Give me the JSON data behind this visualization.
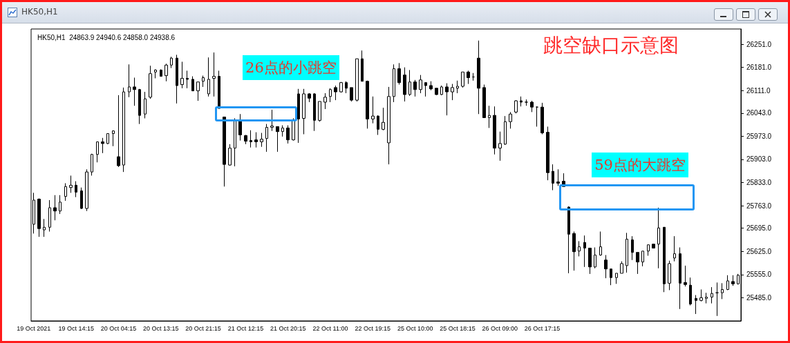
{
  "chart_data": {
    "type": "candlestick",
    "title": "HK50,H1",
    "subtitle": "HK50,H1  24863.9 24940.6 24858.0 24938.6",
    "color": "#000000",
    "annotations": [
      "跳空缺口示意图",
      "26点的小跳空",
      "59点的大跳空"
    ],
    "categories": [
      "19 Oct 2021",
      null,
      null,
      null,
      null,
      null,
      null,
      null,
      "19 Oct 14:15",
      null,
      null,
      null,
      null,
      null,
      null,
      null,
      "20 Oct 04:15",
      null,
      null,
      null,
      null,
      null,
      null,
      null,
      "20 Oct 13:15",
      null,
      null,
      null,
      null,
      null,
      null,
      null,
      "20 Oct 21:15",
      null,
      null,
      null,
      null,
      null,
      null,
      null,
      "21 Oct 12:15",
      null,
      null,
      null,
      null,
      null,
      null,
      null,
      "21 Oct 20:15",
      null,
      null,
      null,
      null,
      null,
      null,
      null,
      "22 Oct 11:00",
      null,
      null,
      null,
      null,
      null,
      null,
      null,
      "22 Oct 19:15",
      null,
      null,
      null,
      null,
      null,
      null,
      null,
      "25 Oct 10:00",
      null,
      null,
      null,
      null,
      null,
      null,
      null,
      "25 Oct 18:15",
      null,
      null,
      null,
      null,
      null,
      null,
      null,
      "26 Oct 09:00",
      null,
      null,
      null,
      null,
      null,
      null,
      null,
      "26 Oct 17:15",
      null,
      null,
      null,
      null,
      null,
      null,
      null,
      null,
      null,
      null,
      null,
      null,
      null,
      null,
      null,
      null,
      null,
      null,
      null,
      null,
      null,
      null,
      null,
      null,
      null,
      null,
      null,
      null,
      null,
      null,
      null,
      null,
      null,
      null,
      null,
      null,
      null
    ],
    "ohlc": [
      [
        25707,
        25802,
        25679,
        25780
      ],
      [
        25783,
        25785,
        25669,
        25694
      ],
      [
        25690,
        25723,
        25669,
        25698
      ],
      [
        25698,
        25780,
        25685,
        25757
      ],
      [
        25757,
        25795,
        25719,
        25747
      ],
      [
        25747,
        25795,
        25738,
        25774
      ],
      [
        25791,
        25831,
        25778,
        25821
      ],
      [
        25818,
        25854,
        25802,
        25825
      ],
      [
        25825,
        25837,
        25789,
        25804
      ],
      [
        25808,
        25818,
        25753,
        25755
      ],
      [
        25755,
        25873,
        25747,
        25865
      ],
      [
        25865,
        25920,
        25854,
        25918
      ],
      [
        25918,
        25956,
        25894,
        25956
      ],
      [
        25956,
        25968,
        25922,
        25951
      ],
      [
        25951,
        25981,
        25949,
        25981
      ],
      [
        25981,
        25991,
        25943,
        25989
      ],
      [
        25911,
        26097,
        25880,
        25884
      ],
      [
        25886,
        26120,
        25865,
        26107
      ],
      [
        26107,
        26190,
        26091,
        26122
      ],
      [
        26122,
        26150,
        26065,
        26114
      ],
      [
        26114,
        26116,
        26010,
        26036
      ],
      [
        26040,
        26107,
        26027,
        26086
      ],
      [
        26091,
        26186,
        26086,
        26162
      ],
      [
        26167,
        26175,
        26148,
        26173
      ],
      [
        26173,
        26175,
        26154,
        26154
      ],
      [
        26156,
        26192,
        26139,
        26188
      ],
      [
        26188,
        26213,
        26179,
        26209
      ],
      [
        26209,
        26219,
        26072,
        26126
      ],
      [
        26129,
        26198,
        26118,
        26148
      ],
      [
        26148,
        26171,
        26118,
        26145
      ],
      [
        26145,
        26154,
        26110,
        26110
      ],
      [
        26110,
        26137,
        26080,
        26137
      ],
      [
        26139,
        26156,
        26122,
        26150
      ],
      [
        26101,
        26211,
        26093,
        26145
      ],
      [
        26148,
        26226,
        26093,
        26154
      ],
      [
        26154,
        26171,
        26057,
        26057
      ],
      [
        26031,
        26031,
        25821,
        25888
      ],
      [
        25886,
        25949,
        25884,
        25937
      ],
      [
        25937,
        26027,
        25882,
        26019
      ],
      [
        26021,
        26040,
        25960,
        25977
      ],
      [
        25975,
        25977,
        25949,
        25958
      ],
      [
        25960,
        25991,
        25939,
        25956
      ],
      [
        25962,
        25985,
        25939,
        25956
      ],
      [
        25956,
        25983,
        25941,
        25964
      ],
      [
        25966,
        26010,
        25926,
        26000
      ],
      [
        26000,
        26053,
        25989,
        26004
      ],
      [
        26002,
        26002,
        25926,
        25987
      ],
      [
        25987,
        26006,
        25972,
        25998
      ],
      [
        25998,
        26006,
        25951,
        25962
      ],
      [
        25962,
        26027,
        25960,
        26023
      ],
      [
        26101,
        26116,
        25953,
        26025
      ],
      [
        26027,
        26116,
        25979,
        26101
      ],
      [
        26101,
        26103,
        26076,
        26088
      ],
      [
        26101,
        26103,
        25989,
        26021
      ],
      [
        26021,
        26078,
        26017,
        26078
      ],
      [
        26076,
        26103,
        26055,
        26091
      ],
      [
        26093,
        26118,
        26076,
        26114
      ],
      [
        26120,
        26126,
        26082,
        26107
      ],
      [
        26107,
        26137,
        26105,
        26135
      ],
      [
        26135,
        26139,
        26103,
        26118
      ],
      [
        26120,
        26120,
        26078,
        26082
      ],
      [
        26082,
        26207,
        26078,
        26207
      ],
      [
        26207,
        26232,
        26139,
        26139
      ],
      [
        26139,
        26141,
        25996,
        26025
      ],
      [
        26025,
        26093,
        26012,
        26034
      ],
      [
        26034,
        26036,
        25977,
        25994
      ],
      [
        25994,
        26059,
        25991,
        26015
      ],
      [
        25953,
        26122,
        25888,
        26093
      ],
      [
        26093,
        26190,
        26076,
        26177
      ],
      [
        26177,
        26194,
        26129,
        26135
      ],
      [
        26158,
        26181,
        26078,
        26099
      ],
      [
        26099,
        26173,
        26095,
        26137
      ],
      [
        26137,
        26143,
        26093,
        26114
      ],
      [
        26114,
        26158,
        26103,
        26143
      ],
      [
        26135,
        26135,
        26093,
        26126
      ],
      [
        26126,
        26139,
        26112,
        26116
      ],
      [
        26118,
        26118,
        26097,
        26099
      ],
      [
        26099,
        26126,
        26097,
        26122
      ],
      [
        26122,
        26133,
        26036,
        26107
      ],
      [
        26107,
        26131,
        26082,
        26120
      ],
      [
        26118,
        26141,
        26103,
        26124
      ],
      [
        26124,
        26167,
        26120,
        26167
      ],
      [
        26167,
        26171,
        26131,
        26150
      ],
      [
        26152,
        26164,
        26141,
        26152
      ],
      [
        26209,
        26262,
        26040,
        26118
      ],
      [
        26120,
        26129,
        26029,
        26029
      ],
      [
        26029,
        26065,
        25998,
        26036
      ],
      [
        26036,
        26063,
        25918,
        25937
      ],
      [
        25937,
        25987,
        25899,
        25951
      ],
      [
        25949,
        26034,
        25947,
        26017
      ],
      [
        26017,
        26046,
        25996,
        26040
      ],
      [
        26046,
        26082,
        26042,
        26080
      ],
      [
        26080,
        26093,
        26063,
        26076
      ],
      [
        26076,
        26084,
        26065,
        26076
      ],
      [
        26076,
        26080,
        26046,
        26061
      ],
      [
        26061,
        26063,
        26002,
        26061
      ],
      [
        26061,
        26074,
        25979,
        25983
      ],
      [
        25985,
        26002,
        25840,
        25863
      ],
      [
        25867,
        25888,
        25810,
        25831
      ],
      [
        25835,
        25873,
        25823,
        25831
      ],
      [
        25837,
        25861,
        25821,
        25821
      ],
      [
        25759,
        25761,
        25559,
        25677
      ],
      [
        25679,
        25685,
        25567,
        25624
      ],
      [
        25626,
        25656,
        25610,
        25639
      ],
      [
        25652,
        25673,
        25578,
        25635
      ],
      [
        25635,
        25635,
        25557,
        25578
      ],
      [
        25578,
        25637,
        25574,
        25614
      ],
      [
        25614,
        25685,
        25612,
        25639
      ],
      [
        25599,
        25614,
        25544,
        25572
      ],
      [
        25572,
        25572,
        25523,
        25546
      ],
      [
        25546,
        25559,
        25527,
        25559
      ],
      [
        25559,
        25595,
        25559,
        25588
      ],
      [
        25582,
        25681,
        25561,
        25662
      ],
      [
        25660,
        25671,
        25599,
        25622
      ],
      [
        25622,
        25622,
        25557,
        25593
      ],
      [
        25593,
        25626,
        25580,
        25626
      ],
      [
        25626,
        25645,
        25612,
        25645
      ],
      [
        25647,
        25647,
        25635,
        25635
      ],
      [
        25647,
        25757,
        25574,
        25696
      ],
      [
        25698,
        25698,
        25502,
        25527
      ],
      [
        25529,
        25597,
        25508,
        25588
      ],
      [
        25605,
        25671,
        25595,
        25618
      ],
      [
        25618,
        25637,
        25451,
        25529
      ],
      [
        25531,
        25582,
        25519,
        25525
      ],
      [
        25523,
        25546,
        25462,
        25466
      ],
      [
        25483,
        25493,
        25436,
        25477
      ],
      [
        25477,
        25510,
        25474,
        25485
      ],
      [
        25483,
        25500,
        25468,
        25487
      ],
      [
        25487,
        25517,
        25468,
        25498
      ],
      [
        25500,
        25531,
        25430,
        25500
      ],
      [
        25500,
        25529,
        25481,
        25510
      ],
      [
        25510,
        25553,
        25508,
        25536
      ],
      [
        25534,
        25553,
        25521,
        25527
      ],
      [
        25527,
        25557,
        25525,
        25553
      ]
    ],
    "ylim": [
      25415,
      26297
    ],
    "yticks": [
      {
        "value": 25485,
        "label": "25485.0"
      },
      {
        "value": 25555,
        "label": "25555.0"
      },
      {
        "value": 25625,
        "label": "25625.0"
      },
      {
        "value": 25695,
        "label": "25695.0"
      },
      {
        "value": 25763,
        "label": "25763.0"
      },
      {
        "value": 25833,
        "label": "25833.0"
      },
      {
        "value": 25903,
        "label": "25903.0"
      },
      {
        "value": 25973,
        "label": "25973.0"
      },
      {
        "value": 26043,
        "label": "26043.0"
      },
      {
        "value": 26111,
        "label": "26111.0"
      },
      {
        "value": 26181,
        "label": "26181.0"
      },
      {
        "value": 26251,
        "label": "26251.0"
      }
    ]
  }
}
